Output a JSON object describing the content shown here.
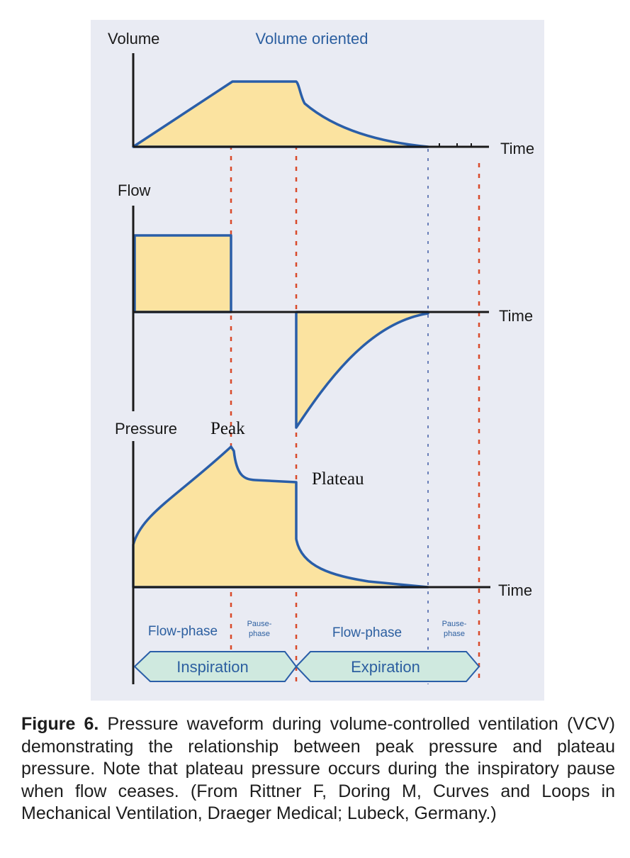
{
  "diagram": {
    "header": "Volume oriented",
    "panels": {
      "volume": {
        "ylabel": "Volume",
        "xlabel": "Time"
      },
      "flow": {
        "ylabel": "Flow",
        "xlabel": "Time"
      },
      "pressure": {
        "ylabel": "Pressure",
        "xlabel": "Time"
      }
    },
    "annotations": {
      "peak": "Peak",
      "plateau": "Plateau"
    },
    "phases": {
      "insp_flow": "Flow-phase",
      "insp_pause_1": "Pause-",
      "insp_pause_2": "phase",
      "exp_flow": "Flow-phase",
      "exp_pause_1": "Pause-",
      "exp_pause_2": "phase"
    },
    "cycle": {
      "inspiration": "Inspiration",
      "expiration": "Expiration"
    },
    "colors": {
      "fill": "#fbe3a0",
      "curve": "#2a5ea8",
      "guide": "#d94a2a",
      "banner": "#cfe9df",
      "background": "#e9ebf3"
    }
  },
  "caption": {
    "label": "Figure 6.",
    "text": "Pressure waveform during volume-controlled ventilation (VCV) demonstrating the relationship between peak pressure and plateau pressure. Note that plateau pressure occurs during the inspiratory pause when flow ceases. (From Rittner F, Doring M, Curves and Loops in Mechanical Ventilation, Draeger Medical; Lubeck, Germany.)"
  }
}
